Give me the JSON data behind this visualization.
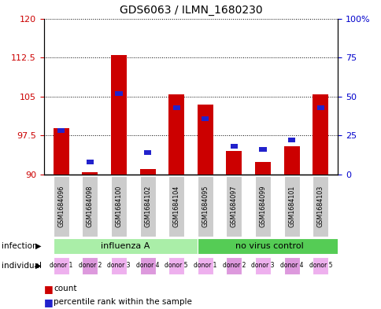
{
  "title": "GDS6063 / ILMN_1680230",
  "samples": [
    "GSM1684096",
    "GSM1684098",
    "GSM1684100",
    "GSM1684102",
    "GSM1684104",
    "GSM1684095",
    "GSM1684097",
    "GSM1684099",
    "GSM1684101",
    "GSM1684103"
  ],
  "red_values": [
    99.0,
    90.5,
    113.0,
    91.0,
    105.5,
    103.5,
    94.5,
    92.5,
    95.5,
    105.5
  ],
  "blue_values_pct": [
    28,
    8,
    52,
    14,
    43,
    36,
    18,
    16,
    22,
    43
  ],
  "ylim_left": [
    90,
    120
  ],
  "ylim_right": [
    0,
    100
  ],
  "yticks_left": [
    90,
    97.5,
    105,
    112.5,
    120
  ],
  "yticks_right": [
    0,
    25,
    50,
    75,
    100
  ],
  "ytick_labels_left": [
    "90",
    "97.5",
    "105",
    "112.5",
    "120"
  ],
  "ytick_labels_right": [
    "0",
    "25",
    "50",
    "75",
    "100%"
  ],
  "infection_groups": [
    {
      "label": "influenza A",
      "start": 0,
      "end": 5,
      "color": "#AAEEA8"
    },
    {
      "label": "no virus control",
      "start": 5,
      "end": 10,
      "color": "#55CC55"
    }
  ],
  "individual_labels": [
    "donor 1",
    "donor 2",
    "donor 3",
    "donor 4",
    "donor 5",
    "donor 1",
    "donor 2",
    "donor 3",
    "donor 4",
    "donor 5"
  ],
  "bar_color": "#CC0000",
  "blue_color": "#2222CC",
  "tick_color_left": "#CC0000",
  "tick_color_right": "#0000CC",
  "bar_width": 0.55,
  "blue_bar_width": 0.25
}
